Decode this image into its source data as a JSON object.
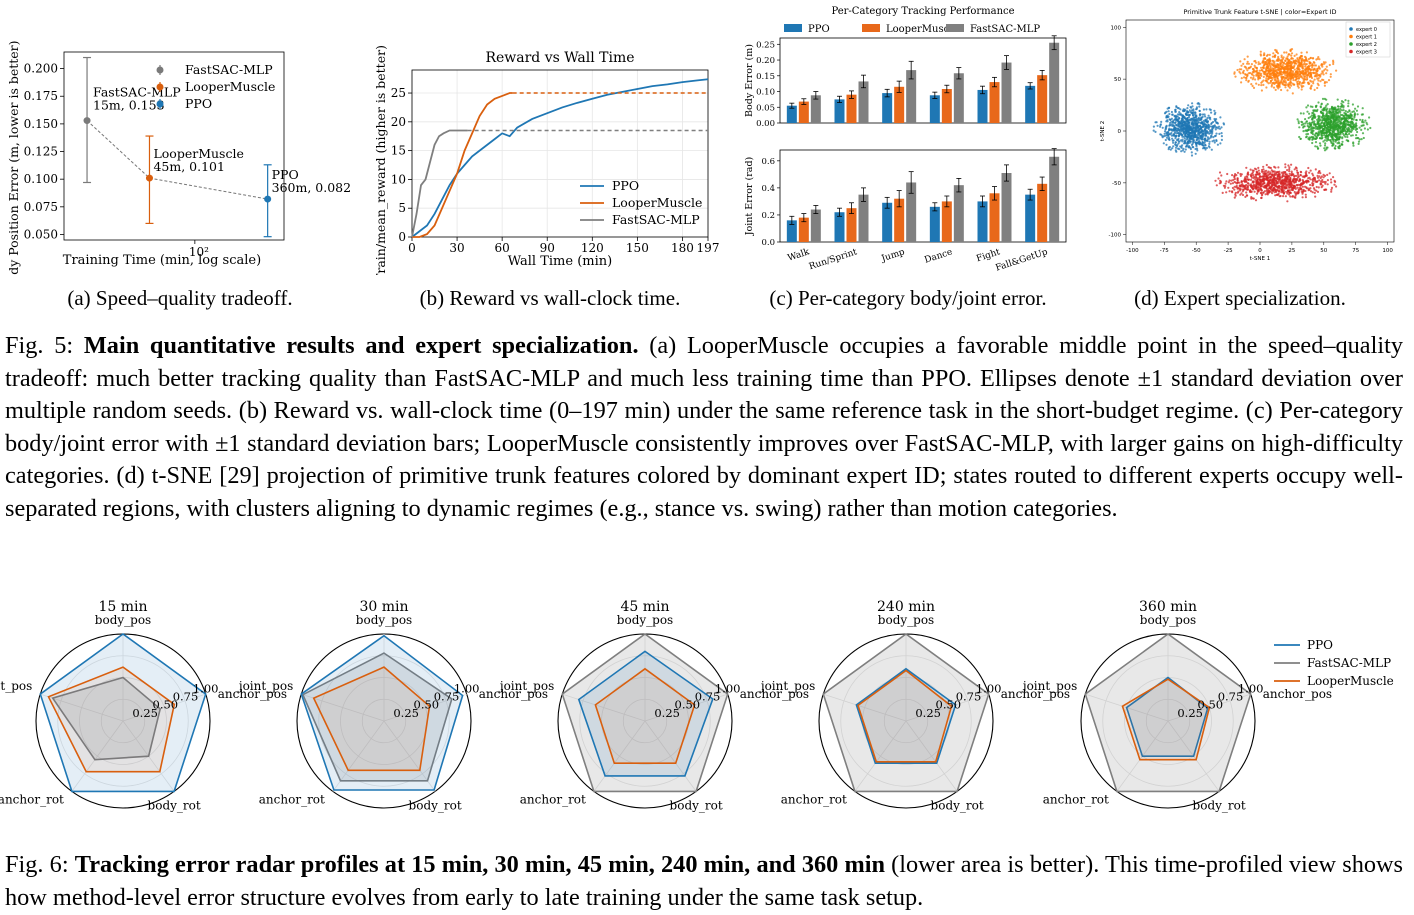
{
  "fig5": {
    "panel_a": {
      "sublabel": "(a) Speed–quality tradeoff.",
      "chart_data": {
        "type": "scatter",
        "xlabel": "Training Time (min, log scale)",
        "ylabel": "Body Position Error (m, lower is better)",
        "xscale": "log",
        "xtick_label": "10²",
        "ylim": [
          0.045,
          0.215
        ],
        "yticks": [
          0.05,
          0.075,
          0.1,
          0.125,
          0.15,
          0.175,
          0.2
        ],
        "ytick_labels": [
          "0.050",
          "0.075",
          "0.100",
          "0.125",
          "0.150",
          "0.175",
          "0.200"
        ],
        "legend": "upper right",
        "series": [
          {
            "name": "FastSAC-MLP",
            "x": 15,
            "y": 0.153,
            "ylow": 0.097,
            "yhigh": 0.21,
            "label": "FastSAC-MLP\n15m, 0.153",
            "color": "#7a7a7a"
          },
          {
            "name": "LooperMuscle",
            "x": 45,
            "y": 0.101,
            "ylow": 0.06,
            "yhigh": 0.139,
            "label": "LooperMuscle\n45m, 0.101",
            "color": "#d95f0e"
          },
          {
            "name": "PPO",
            "x": 360,
            "y": 0.082,
            "ylow": 0.048,
            "yhigh": 0.113,
            "label": "PPO\n360m, 0.082",
            "color": "#1f77b4"
          }
        ]
      }
    },
    "panel_b": {
      "sublabel": "(b) Reward vs wall-clock time.",
      "chart_data": {
        "type": "line",
        "title": "Reward vs Wall Time",
        "xlabel": "Wall Time (min)",
        "ylabel": "Train/mean_reward (higher is better)",
        "xlim": [
          0,
          197
        ],
        "ylim": [
          0,
          29
        ],
        "xticks": [
          0,
          30,
          60,
          90,
          120,
          150,
          180,
          197
        ],
        "yticks": [
          0,
          5,
          10,
          15,
          20,
          25
        ],
        "grid": true,
        "legend": "lower right",
        "series": [
          {
            "name": "PPO",
            "color": "#1f77b4",
            "x": [
              0,
              5,
              10,
              15,
              20,
              25,
              30,
              35,
              40,
              45,
              50,
              55,
              60,
              65,
              70,
              80,
              90,
              100,
              110,
              120,
              130,
              140,
              150,
              160,
              170,
              180,
              190,
              197
            ],
            "y": [
              0,
              1,
              2,
              4,
              6.5,
              9,
              11,
              12.5,
              14,
              15,
              16,
              17,
              18,
              17.5,
              19,
              20.5,
              21.5,
              22.5,
              23.3,
              24,
              24.7,
              25.2,
              25.7,
              26.2,
              26.5,
              26.9,
              27.2,
              27.4
            ]
          },
          {
            "name": "LooperMuscle",
            "color": "#d95f0e",
            "x": [
              0,
              5,
              10,
              15,
              20,
              25,
              30,
              35,
              40,
              45,
              50,
              55,
              60,
              65,
              67,
              197
            ],
            "y": [
              0,
              0,
              0.5,
              2,
              5,
              8,
              11,
              15,
              18,
              21,
              23,
              24,
              24.5,
              25,
              25,
              25
            ],
            "dashed_from": 67
          },
          {
            "name": "FastSAC-MLP",
            "color": "#7f7f7f",
            "x": [
              0,
              3,
              6,
              9,
              12,
              15,
              18,
              21,
              25,
              30,
              35,
              37,
              197
            ],
            "y": [
              0,
              4,
              9,
              10,
              13,
              16,
              17.5,
              18,
              18.5,
              18.5,
              18.5,
              18.5,
              18.5
            ],
            "dashed_from": 37
          }
        ]
      }
    },
    "panel_c": {
      "sublabel": "(c) Per-category body/joint error.",
      "chart_data": {
        "type": "bar",
        "title": "Per-Category Tracking Performance",
        "categories": [
          "Walk",
          "Run/Sprint",
          "Jump",
          "Dance",
          "Fight",
          "Fall&GetUp"
        ],
        "legend": "top",
        "subplots": [
          {
            "ylabel": "Body Error (m)",
            "ylim": [
              0,
              0.27
            ],
            "yticks": [
              0,
              0.05,
              0.1,
              0.15,
              0.2,
              0.25
            ],
            "ytick_labels": [
              "0.00",
              "0.05",
              "0.10",
              "0.15",
              "0.20",
              "0.25"
            ],
            "series": [
              {
                "name": "PPO",
                "color": "#1f77b4",
                "values": [
                  0.055,
                  0.075,
                  0.095,
                  0.088,
                  0.105,
                  0.118
                ],
                "err": [
                  0.008,
                  0.01,
                  0.012,
                  0.01,
                  0.012,
                  0.01
                ]
              },
              {
                "name": "LooperMuscle",
                "color": "#e8681a",
                "values": [
                  0.068,
                  0.09,
                  0.115,
                  0.108,
                  0.13,
                  0.152
                ],
                "err": [
                  0.009,
                  0.012,
                  0.018,
                  0.012,
                  0.015,
                  0.015
                ]
              },
              {
                "name": "FastSAC-MLP",
                "color": "#808080",
                "values": [
                  0.088,
                  0.132,
                  0.168,
                  0.158,
                  0.192,
                  0.255
                ],
                "err": [
                  0.012,
                  0.02,
                  0.028,
                  0.018,
                  0.022,
                  0.022
                ]
              }
            ]
          },
          {
            "ylabel": "Joint Error (rad)",
            "ylim": [
              0,
              0.68
            ],
            "yticks": [
              0,
              0.2,
              0.4,
              0.6
            ],
            "ytick_labels": [
              "0.0",
              "0.2",
              "0.4",
              "0.6"
            ],
            "series": [
              {
                "name": "PPO",
                "color": "#1f77b4",
                "values": [
                  0.16,
                  0.22,
                  0.29,
                  0.26,
                  0.3,
                  0.35
                ],
                "err": [
                  0.03,
                  0.03,
                  0.04,
                  0.03,
                  0.04,
                  0.04
                ]
              },
              {
                "name": "LooperMuscle",
                "color": "#e8681a",
                "values": [
                  0.18,
                  0.25,
                  0.32,
                  0.3,
                  0.36,
                  0.43
                ],
                "err": [
                  0.03,
                  0.04,
                  0.06,
                  0.04,
                  0.05,
                  0.05
                ]
              },
              {
                "name": "FastSAC-MLP",
                "color": "#808080",
                "values": [
                  0.24,
                  0.35,
                  0.44,
                  0.42,
                  0.51,
                  0.63
                ],
                "err": [
                  0.03,
                  0.05,
                  0.08,
                  0.05,
                  0.06,
                  0.06
                ]
              }
            ]
          }
        ]
      }
    },
    "panel_d": {
      "sublabel": "(d) Expert specialization.",
      "chart_data": {
        "type": "scatter",
        "title": "Primitive Trunk Feature t-SNE | color=Expert ID",
        "xlabel": "t-SNE 1",
        "ylabel": "t-SNE 2",
        "xlim": [
          -105,
          105
        ],
        "ylim": [
          -107,
          107
        ],
        "xticks": [
          -100,
          -75,
          -50,
          -25,
          0,
          25,
          50,
          75,
          100
        ],
        "yticks": [
          -100,
          -50,
          0,
          50,
          100
        ],
        "legend": "upper right",
        "series": [
          {
            "name": "expert 0",
            "color": "#1f77b4",
            "center": [
              -55,
              2
            ],
            "spread": [
              22,
              20
            ]
          },
          {
            "name": "expert 1",
            "color": "#ff7f0e",
            "center": [
              20,
              58
            ],
            "spread": [
              32,
              17
            ]
          },
          {
            "name": "expert 2",
            "color": "#2ca02c",
            "center": [
              57,
              6
            ],
            "spread": [
              23,
              20
            ]
          },
          {
            "name": "expert 3",
            "color": "#d62728",
            "center": [
              12,
              -50
            ],
            "spread": [
              40,
              14
            ]
          }
        ]
      }
    },
    "caption": {
      "label": "Fig. 5:",
      "bold": "Main quantitative results and expert specialization.",
      "text": "(a) LooperMuscle occupies a favorable middle point in the speed–quality tradeoff: much better tracking quality than FastSAC-MLP and much less training time than PPO. Ellipses denote ±1 standard deviation over multiple random seeds. (b) Reward vs. wall-clock time (0–197 min) under the same reference task in the short-budget regime. (c) Per-category body/joint error with ±1 standard deviation bars; LooperMuscle consistently improves over FastSAC-MLP, with larger gains on high-difficulty categories. (d) t-SNE [29] projection of primitive trunk features colored by dominant expert ID; states routed to different experts occupy well-separated regions, with clusters aligning to dynamic regimes (e.g., stance vs. swing) rather than motion categories."
    }
  },
  "fig6": {
    "chart_data": {
      "type": "radar",
      "axes": [
        "body_pos",
        "anchor_pos",
        "body_rot",
        "anchor_rot",
        "joint_pos"
      ],
      "rticks": [
        0.25,
        0.5,
        0.75,
        1.0
      ],
      "rtick_labels": [
        "0.25",
        "0.50",
        "0.75",
        "1.00"
      ],
      "legend": "right",
      "legend_entries": [
        "PPO",
        "FastSAC-MLP",
        "LooperMuscle"
      ],
      "colors": {
        "PPO": "#1f77b4",
        "FastSAC-MLP": "#7f7f7f",
        "LooperMuscle": "#d95f0e"
      },
      "subplots": [
        {
          "title": "15 min",
          "series": {
            "PPO": [
              1.0,
              1.0,
              1.0,
              1.0,
              1.0
            ],
            "FastSAC-MLP": [
              0.5,
              0.45,
              0.5,
              0.55,
              0.85
            ],
            "LooperMuscle": [
              0.62,
              0.62,
              0.72,
              0.72,
              0.9
            ]
          }
        },
        {
          "title": "30 min",
          "series": {
            "PPO": [
              0.98,
              0.95,
              0.98,
              0.98,
              1.0
            ],
            "FastSAC-MLP": [
              0.78,
              0.82,
              0.85,
              0.85,
              0.98
            ],
            "LooperMuscle": [
              0.62,
              0.55,
              0.7,
              0.7,
              0.85
            ]
          }
        },
        {
          "title": "45 min",
          "series": {
            "PPO": [
              0.8,
              0.82,
              0.78,
              0.78,
              0.8
            ],
            "FastSAC-MLP": [
              1.0,
              1.0,
              1.0,
              1.0,
              1.0
            ],
            "LooperMuscle": [
              0.6,
              0.6,
              0.6,
              0.6,
              0.6
            ]
          }
        },
        {
          "title": "240 min",
          "series": {
            "PPO": [
              0.6,
              0.6,
              0.6,
              0.6,
              0.6
            ],
            "FastSAC-MLP": [
              1.0,
              1.0,
              1.0,
              1.0,
              1.0
            ],
            "LooperMuscle": [
              0.58,
              0.55,
              0.58,
              0.58,
              0.58
            ]
          }
        },
        {
          "title": "360 min",
          "series": {
            "PPO": [
              0.5,
              0.48,
              0.5,
              0.5,
              0.5
            ],
            "FastSAC-MLP": [
              1.0,
              1.0,
              1.0,
              1.0,
              1.0
            ],
            "LooperMuscle": [
              0.48,
              0.5,
              0.55,
              0.55,
              0.55
            ]
          }
        }
      ]
    },
    "caption": {
      "label": "Fig. 6:",
      "bold": "Tracking error radar profiles at 15 min, 30 min, 45 min, 240 min, and 360 min",
      "text": "(lower area is better). This time-profiled view shows how method-level error structure evolves from early to late training under the same task setup."
    }
  }
}
